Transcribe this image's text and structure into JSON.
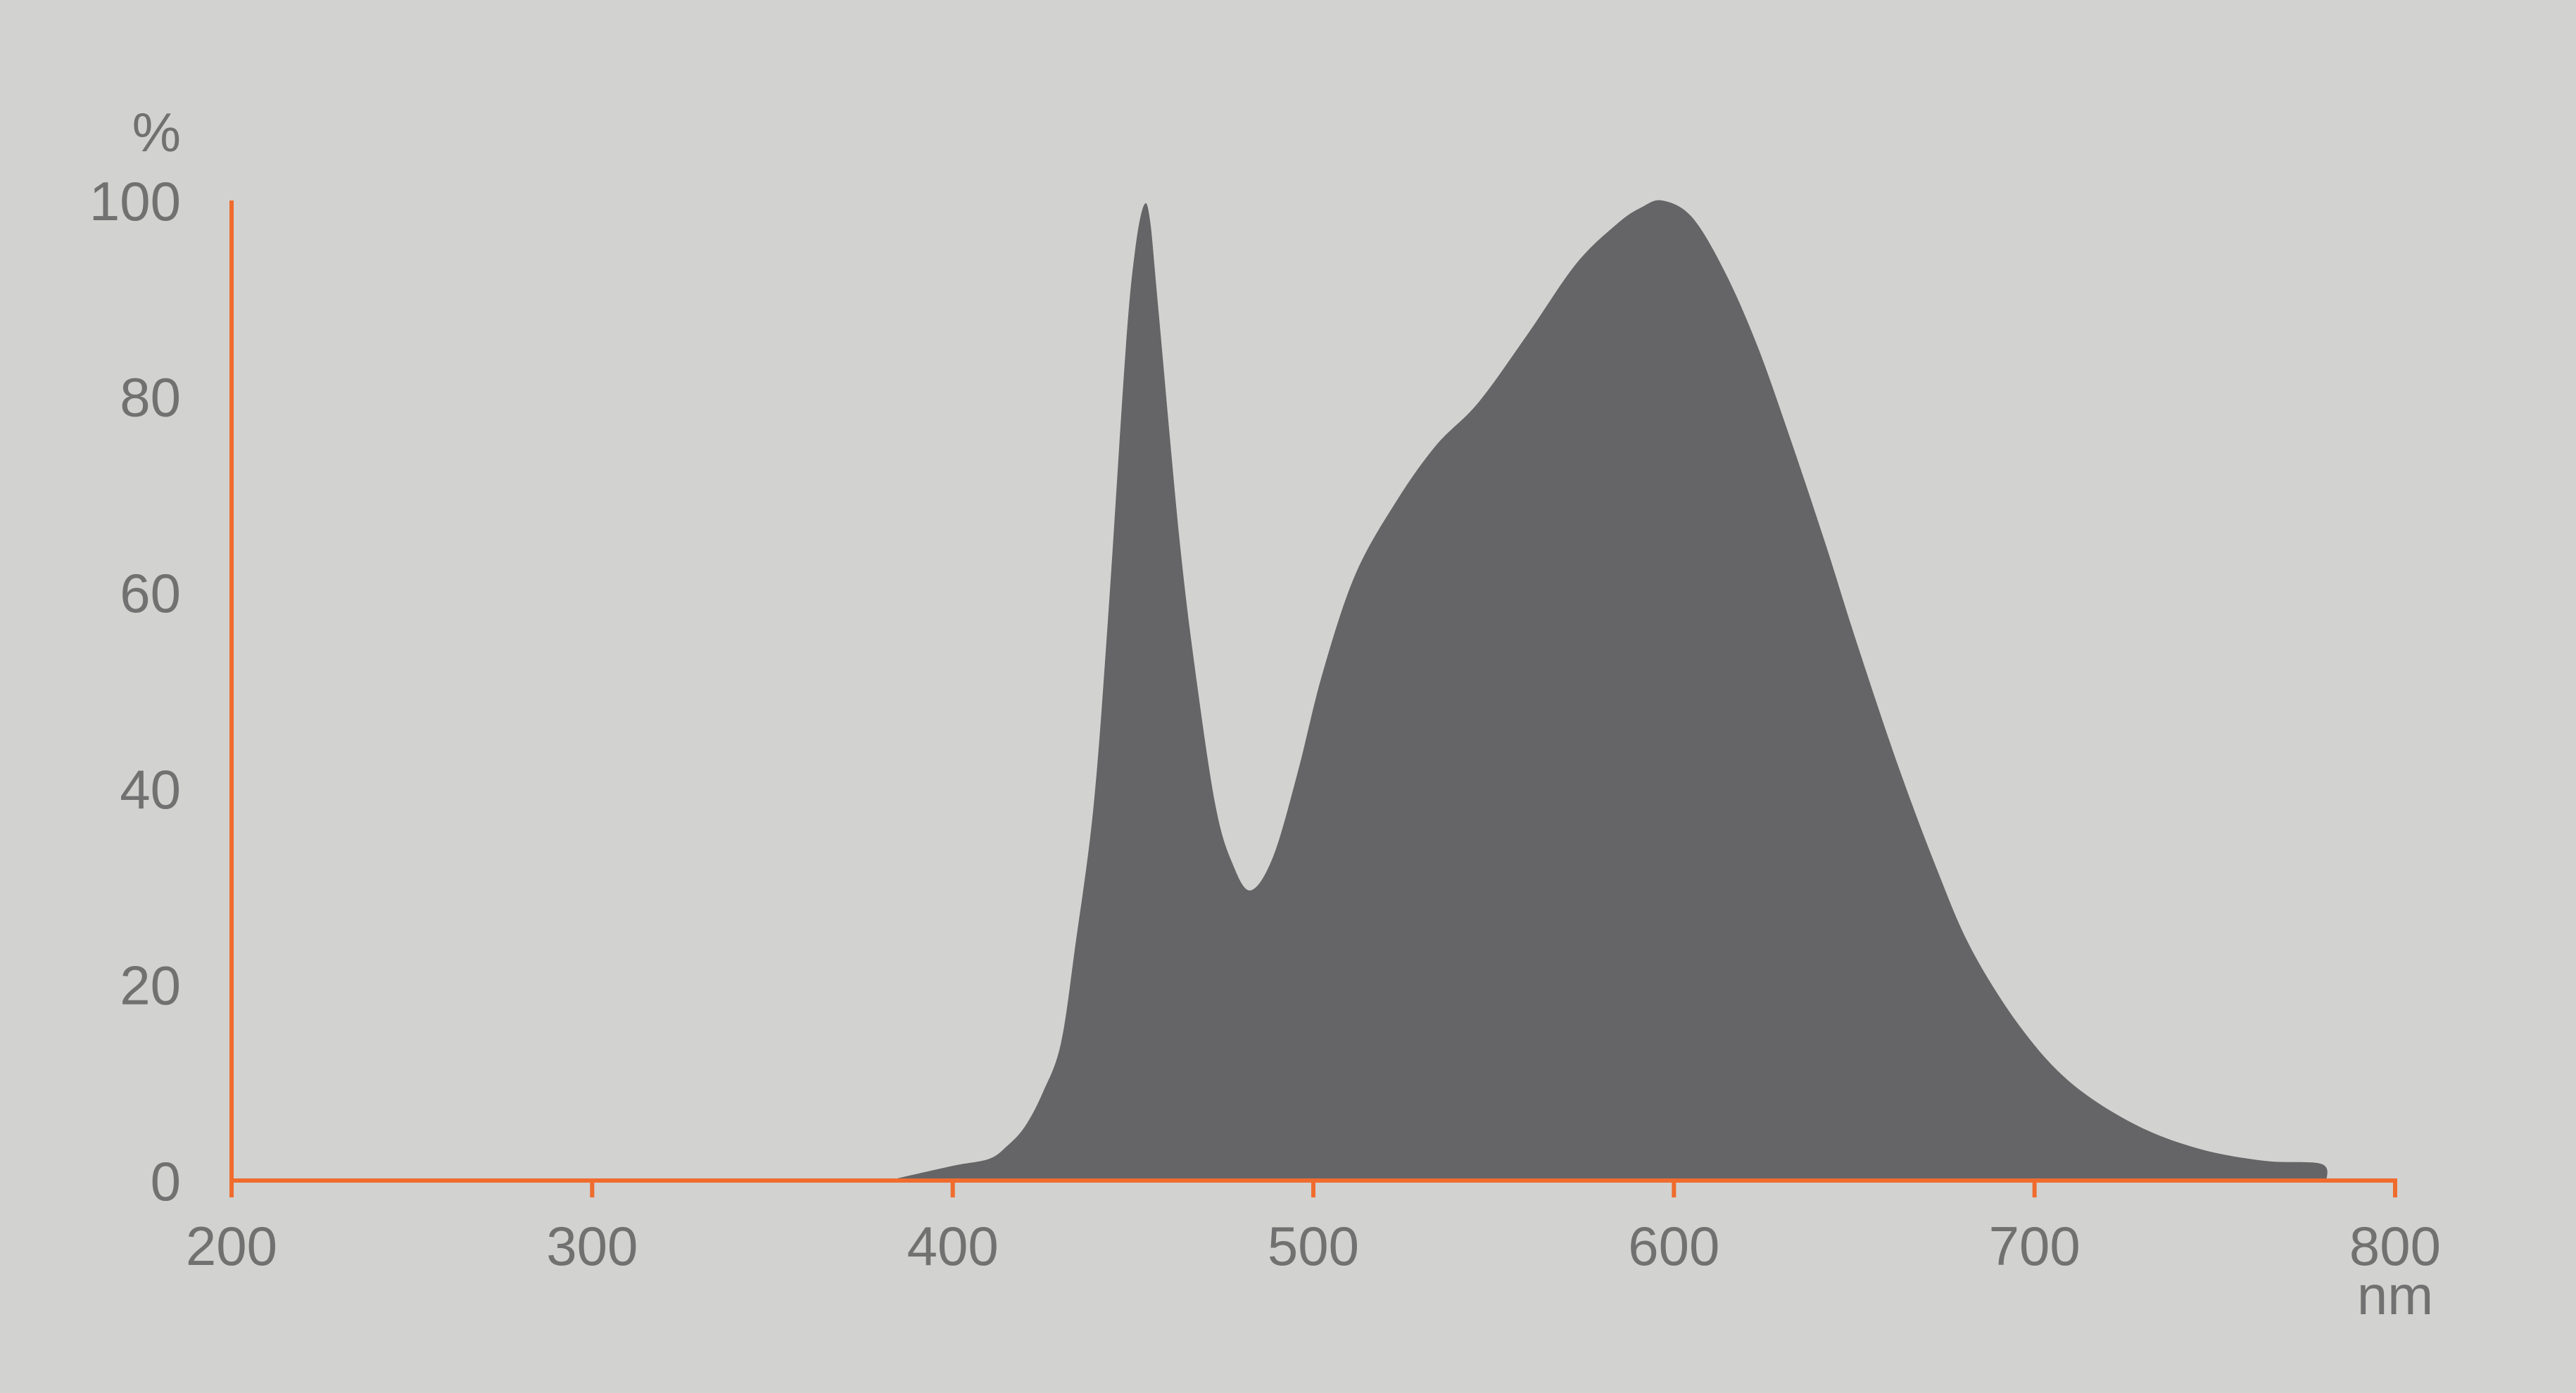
{
  "chart_data": {
    "type": "area",
    "title": "",
    "xlabel": "nm",
    "ylabel": "%",
    "xlim": [
      200,
      800
    ],
    "ylim": [
      0,
      100
    ],
    "x_ticks": [
      200,
      300,
      400,
      500,
      600,
      700,
      800
    ],
    "y_ticks": [
      0,
      20,
      40,
      60,
      80,
      100
    ],
    "grid": false,
    "colors": {
      "background": "#d2d2d0",
      "fill": "#656567",
      "axis": "#ef6c2e",
      "text": "#717171"
    },
    "series": [
      {
        "x": [
          382,
          400,
          410,
          415,
          420,
          425,
          430,
          434,
          439,
          443,
          448,
          450.6,
          453,
          454.7,
          457,
          463,
          468,
          473,
          477.4,
          482.5,
          488.8,
          495.7,
          502.5,
          511.6,
          523,
          534,
          545.8,
          559.5,
          573,
          584.5,
          591,
          596.8,
          605,
          614,
          623,
          632,
          642,
          650.6,
          662,
          673,
          682.5,
          696,
          710,
          728,
          746,
          764,
          779.5,
          781
        ],
        "y": [
          0,
          1.5,
          2.2,
          3.5,
          5.5,
          9,
          14,
          24,
          38,
          57,
          85,
          95,
          99.5,
          98,
          89,
          65,
          50,
          38,
          32.5,
          29.6,
          33,
          41.7,
          51.7,
          61.8,
          69.3,
          75,
          79.4,
          86.4,
          93.6,
          97.7,
          99.3,
          100,
          98.3,
          92.8,
          85.3,
          76,
          65,
          55,
          42.5,
          31.7,
          23.6,
          15.7,
          10,
          5.7,
          3.2,
          2,
          1.7,
          0
        ]
      }
    ]
  }
}
